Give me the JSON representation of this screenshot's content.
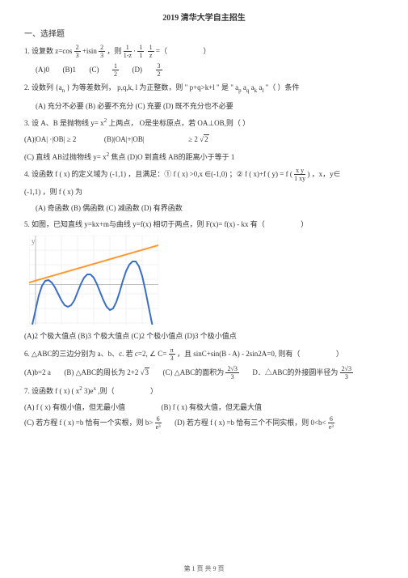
{
  "title": "2019 清华大学自主招生",
  "section1": "一、选择题",
  "q1": {
    "prefix": "1. 设复数 z=cos",
    "frac1n": "2",
    "frac1d": "3",
    "mid1": " +isin ",
    "frac2n": "2",
    "frac2d": "3",
    "mid2": " ，则 ",
    "frac3n": "1",
    "frac3d": "1-z",
    "mid3": " · ",
    "frac4an": "1",
    "frac4ad": "1",
    "frac4bn": "1",
    "frac4bd": "z",
    "suffix": " =（",
    "close": "）",
    "optA": "(A)0",
    "optB": "(B)1",
    "optC": "(C)",
    "optCn": "1",
    "optCd": "2",
    "optD": "(D)",
    "optDn": "3",
    "optDd": "2"
  },
  "q2": {
    "line1a": "2. 设数列 {a",
    "line1b": "} 为等差数列，  p,q,k, l 为正整数，则 \" p+q>k+l \" 是 \" a",
    "line1c": "  a",
    "line1d": "  a",
    "line1e": "  a",
    "line1f": " \"（  ）条件",
    "opts": "(A) 充分不必要  (B) 必要不充分  (C) 充要  (D) 既不充分也不必要"
  },
  "q3": {
    "line1": "3. 设 A、B 是抛物线 y= x",
    "line1b": " 上两点， O是坐标原点，若 OA⊥OB,则（  ）",
    "optA": "(A)|OA| ·|OB| ≥ 2",
    "optB": "(B)|OA|+|OB|",
    "optBr": "≥ 2",
    "sqrtB": "2",
    "optC": "(C) 直线 AB过抛物线 y= x",
    "optCr": " 焦点 (D)O 到直线 AB的距离小于等于  1"
  },
  "q4": {
    "p1": "4. 设函数 f ( x) 的定义域为 (-1,1) ，且满足：① f ( x) >0,x ∈(-1,0) ；② f ( x)+f ( y) = f (",
    "fracN": "x   y",
    "fracD": "1   xy",
    "p2": ") ，x，y∈",
    "p3": "(-1,1) ，则 f ( x) 为",
    "opts": "(A) 奇函数  (B) 偶函数  (C) 减函数  (D) 有界函数"
  },
  "q5": {
    "line1": "5. 如图，已知直线 y=kx+m与曲线 y=f(x) 相切于两点，则 F(x)= f(x) - kx 有（",
    "close": "）",
    "opts": "(A)2 个极大值点  (B)3 个极大值点  (C)2 个极小值点  (D)3 个极小值点"
  },
  "q6": {
    "p1": "6. △ABC的三边分别为 a、b、c. 若 c=2, ∠ C=",
    "fracN": "π",
    "fracD": "3",
    "p2": " ，且 sinC+sin(B - A) - 2sin2A=0, 则有（",
    "close": "）",
    "optA": "(A)b=2 a",
    "optB": "(B) △ABC的周长为 2+2",
    "sqrtB": "3",
    "optC": "(C) △ABC的面积为",
    "fracCn": "2√3",
    "fracCd": "3",
    "optD": "D．△ABC的外接圆半径为",
    "fracDn": "2√3",
    "fracDd": "3"
  },
  "q7": {
    "p1": "7. 设函数 f ( x)   ( x",
    "p2": "   3)e",
    "p3": " ,则（",
    "close": "）",
    "optA": "(A) f ( x) 有极小值，但无最小值",
    "optB": "(B) f ( x) 有极大值，但无最大值",
    "optC": "(C) 若方程 f ( x) =b 恰有一个实根，则 b>",
    "fracCn": "6",
    "fracCd": "e³",
    "optD": "(D) 若方程 f ( x) =b 恰有三个不同实根，则 0<b<",
    "fracDn": "6",
    "fracDd": "e³"
  },
  "chart": {
    "width": 160,
    "height": 110,
    "bg": "#ffffff",
    "grid_color": "#e5e5e5",
    "axis_color": "#bdbdbd",
    "line_color": "#ff9933",
    "line_width": 2,
    "curve_color": "#3a6fc4",
    "curve_width": 2,
    "line_pts": [
      [
        0,
        58
      ],
      [
        160,
        12
      ]
    ],
    "curve_pts": [
      [
        4,
        110
      ],
      [
        8,
        92
      ],
      [
        12,
        74
      ],
      [
        16,
        62
      ],
      [
        20,
        56
      ],
      [
        24,
        55
      ],
      [
        28,
        58
      ],
      [
        32,
        64
      ],
      [
        36,
        72
      ],
      [
        40,
        80
      ],
      [
        44,
        86
      ],
      [
        48,
        88
      ],
      [
        52,
        86
      ],
      [
        56,
        80
      ],
      [
        60,
        70
      ],
      [
        64,
        60
      ],
      [
        68,
        52
      ],
      [
        72,
        48
      ],
      [
        76,
        48
      ],
      [
        80,
        52
      ],
      [
        84,
        60
      ],
      [
        88,
        70
      ],
      [
        92,
        80
      ],
      [
        96,
        88
      ],
      [
        100,
        92
      ],
      [
        104,
        90
      ],
      [
        108,
        82
      ],
      [
        112,
        70
      ],
      [
        116,
        56
      ],
      [
        120,
        44
      ],
      [
        124,
        36
      ],
      [
        128,
        32
      ],
      [
        132,
        32
      ],
      [
        136,
        38
      ],
      [
        140,
        50
      ],
      [
        144,
        68
      ],
      [
        148,
        88
      ],
      [
        152,
        108
      ],
      [
        156,
        128
      ]
    ],
    "ylabel": "y"
  },
  "footer": "第 1 页 共 9 页"
}
